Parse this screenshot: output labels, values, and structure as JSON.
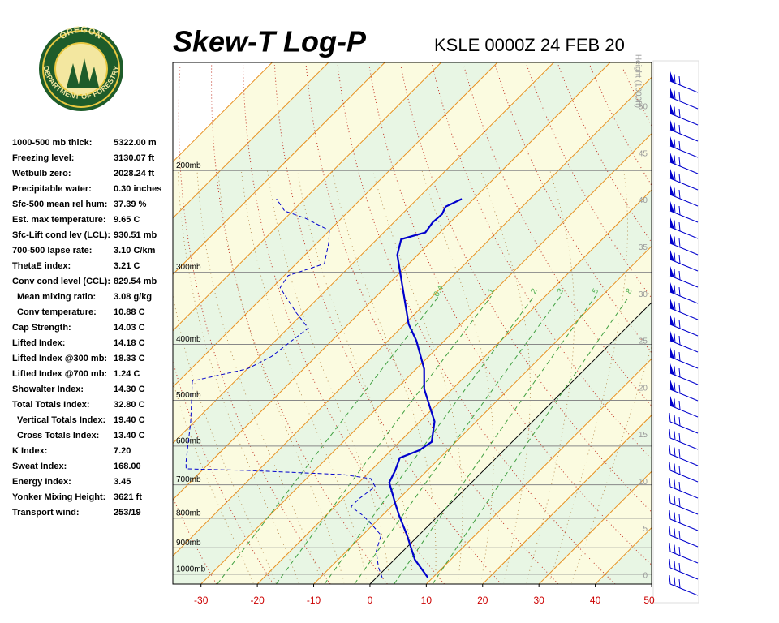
{
  "logo": {
    "top": "OREGON",
    "bottom": "DEPARTMENT OF FORESTRY"
  },
  "indices": [
    {
      "label": "1000-500 mb thick:",
      "value": "5322.00 m"
    },
    {
      "label": "Freezing level:",
      "value": "3130.07 ft"
    },
    {
      "label": "Wetbulb zero:",
      "value": "2028.24 ft"
    },
    {
      "label": "Precipitable water:",
      "value": "0.30 inches"
    },
    {
      "label": "Sfc-500 mean rel hum:",
      "value": "37.39 %"
    },
    {
      "label": "Est. max temperature:",
      "value": "9.65 C"
    },
    {
      "label": "Sfc-Lift cond lev (LCL):",
      "value": "930.51 mb"
    },
    {
      "label": "700-500 lapse rate:",
      "value": "3.10 C/km"
    },
    {
      "label": "ThetaE index:",
      "value": "3.21 C"
    },
    {
      "label": "Conv cond level (CCL):",
      "value": "829.54 mb"
    },
    {
      "label": "Mean mixing ratio:",
      "value": "3.08 g/kg"
    },
    {
      "label": "Conv temperature:",
      "value": "10.88 C"
    },
    {
      "label": "Cap Strength:",
      "value": "14.03 C"
    },
    {
      "label": "Lifted Index:",
      "value": "14.18 C"
    },
    {
      "label": "Lifted Index @300 mb:",
      "value": "18.33 C"
    },
    {
      "label": "Lifted Index @700 mb:",
      "value": "1.24 C"
    },
    {
      "label": "Showalter Index:",
      "value": "14.30 C"
    },
    {
      "label": "Total Totals Index:",
      "value": "32.80 C"
    },
    {
      "label": "Vertical Totals Index:",
      "value": "19.40 C"
    },
    {
      "label": "Cross Totals Index:",
      "value": "13.40 C"
    },
    {
      "label": "K Index:",
      "value": "7.20"
    },
    {
      "label": "Sweat Index:",
      "value": "168.00"
    },
    {
      "label": "Energy Index:",
      "value": "3.45"
    },
    {
      "label": "Yonker Mixing Height:",
      "value": "3621 ft"
    },
    {
      "label": "Transport wind:",
      "value": "253/19"
    }
  ],
  "chart_data": {
    "type": "skewt",
    "title": "Skew-T Log-P",
    "subtitle": "KSLE 0000Z 24 FEB 20",
    "log_scale": true,
    "ylim": [
      1040,
      130
    ],
    "yticks": [
      {
        "value": 200,
        "label": "200mb"
      },
      {
        "value": 300,
        "label": "300mb"
      },
      {
        "value": 400,
        "label": "400mb"
      },
      {
        "value": 500,
        "label": "500mb"
      },
      {
        "value": 600,
        "label": "600mb"
      },
      {
        "value": 700,
        "label": "700mb"
      },
      {
        "value": 800,
        "label": "800mb"
      },
      {
        "value": 900,
        "label": "900mb"
      },
      {
        "value": 1000,
        "label": "1000mb"
      }
    ],
    "xlim": [
      -35,
      50
    ],
    "xticks": [
      -30,
      -20,
      -10,
      0,
      10,
      20,
      30,
      40,
      50
    ],
    "height_label": "Height (1000ft)",
    "hlim": [
      0,
      50
    ],
    "hticks": [
      0,
      5,
      10,
      15,
      20,
      25,
      30,
      35,
      40,
      45,
      50
    ],
    "mixing_ratios": [
      0.4,
      1,
      2,
      3,
      5,
      8
    ],
    "series": [
      {
        "name": "Temperature",
        "color": "#0000cc",
        "x": [
          1013,
          943,
          856,
          790,
          752,
          694,
          661,
          629,
          610,
          590,
          544,
          478,
          441,
          394,
          369,
          280,
          263,
          256,
          246,
          238,
          231,
          224
        ],
        "values": [
          9.1,
          3.6,
          -2.1,
          -7.1,
          -10,
          -14.6,
          -15.7,
          -17.1,
          -15,
          -14.3,
          -17.4,
          -25,
          -28.6,
          -35,
          -39.3,
          -53.6,
          -55.7,
          -52.6,
          -53.1,
          -52.9,
          -53.6,
          -52.1
        ]
      },
      {
        "name": "Dewpoint",
        "color": "#0000cc",
        "x": [
          1013,
          974,
          913,
          856,
          816,
          790,
          764,
          740,
          705,
          683,
          672,
          661,
          657,
          640,
          544,
          463,
          441,
          420,
          394,
          375,
          352,
          319,
          304,
          290,
          267,
          254,
          242,
          235,
          224
        ],
        "values": [
          1,
          -1.4,
          -4.7,
          -6.7,
          -10.7,
          -13.6,
          -17.1,
          -17.1,
          -16.4,
          -18.6,
          -24.3,
          -42.1,
          -53.1,
          -54.3,
          -60.7,
          -67.6,
          -60,
          -57.9,
          -57.1,
          -56.4,
          -61.4,
          -68.6,
          -69.3,
          -65,
          -67.9,
          -70,
          -76.4,
          -81.4,
          -85
        ]
      }
    ]
  }
}
